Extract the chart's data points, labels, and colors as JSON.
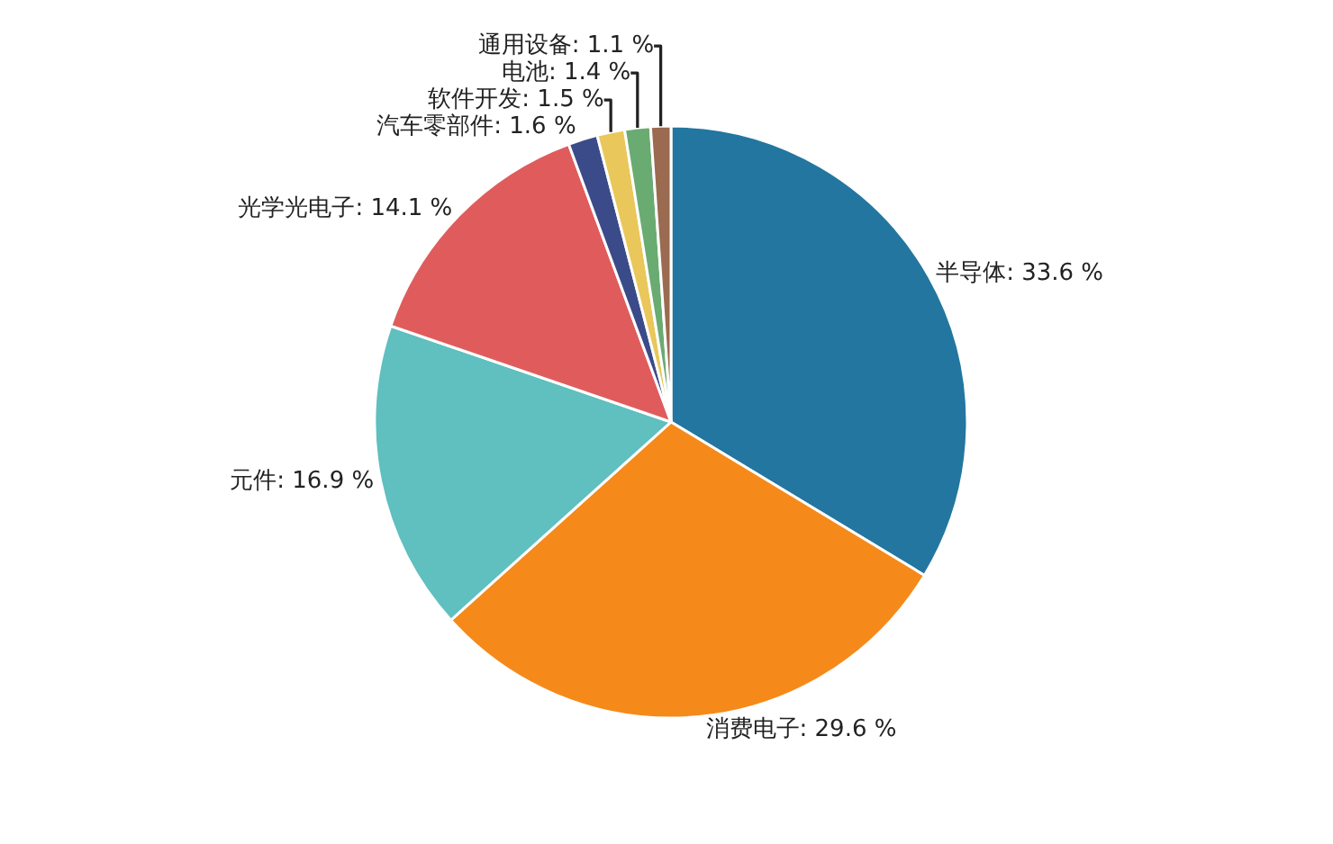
{
  "chart_data": {
    "type": "pie",
    "categories": [
      "半导体",
      "消费电子",
      "元件",
      "光学光电子",
      "汽车零部件",
      "软件开发",
      "电池",
      "通用设备"
    ],
    "values": [
      33.6,
      29.6,
      16.9,
      14.1,
      1.6,
      1.5,
      1.4,
      1.1
    ],
    "value_labels": [
      "33.6 %",
      "29.6 %",
      "16.9 %",
      "14.1 %",
      "1.6 %",
      "1.5 %",
      "1.4 %",
      "1.1 %"
    ],
    "colors": [
      "#23769f",
      "#f58a1a",
      "#60bfbf",
      "#e05c5c",
      "#3b4b8a",
      "#e9c75a",
      "#6aab72",
      "#9a6b50"
    ],
    "legend": false
  }
}
